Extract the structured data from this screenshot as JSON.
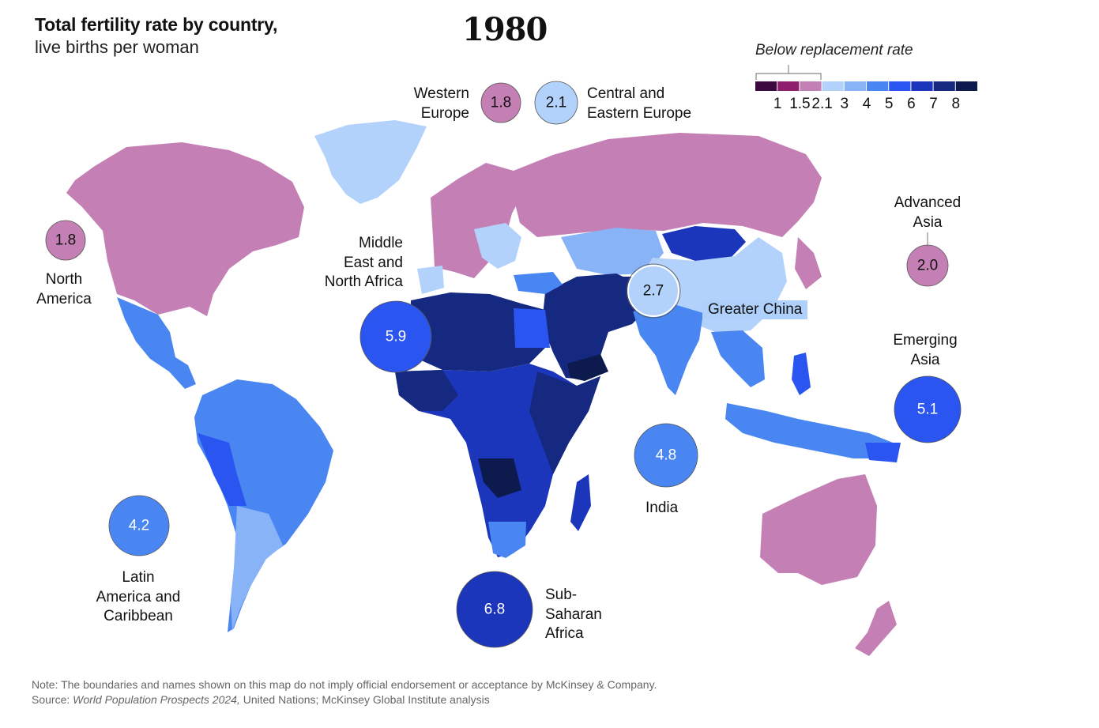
{
  "title": "Total fertility rate by country,",
  "subtitle": "live births per woman",
  "year": "1980",
  "legend": {
    "caption": "Below replacement rate",
    "ticks": [
      "1",
      "1.5",
      "2.1",
      "3",
      "4",
      "5",
      "6",
      "7",
      "8"
    ],
    "colors": [
      "#3d0a3f",
      "#8e1f6e",
      "#c47fb5",
      "#b3d2fb",
      "#88b3f7",
      "#4a86f2",
      "#2b55f0",
      "#1c36bb",
      "#14297f",
      "#0c1a4d"
    ]
  },
  "regions": [
    {
      "id": "north-america",
      "label": "North America",
      "value": "1.8",
      "color": "#c47fb5"
    },
    {
      "id": "western-europe",
      "label": "Western Europe",
      "value": "1.8",
      "color": "#c47fb5"
    },
    {
      "id": "central-eastern-europe",
      "label": "Central and Eastern Europe",
      "value": "2.1",
      "color": "#b3d2fb"
    },
    {
      "id": "middle-east-north-africa",
      "label": "Middle East and North Africa",
      "value": "5.9",
      "color": "#2b55f0"
    },
    {
      "id": "greater-china",
      "label": "Greater China",
      "value": "2.7",
      "color": "#b3d2fb"
    },
    {
      "id": "advanced-asia",
      "label": "Advanced Asia",
      "value": "2.0",
      "color": "#c47fb5"
    },
    {
      "id": "emerging-asia",
      "label": "Emerging Asia",
      "value": "5.1",
      "color": "#2b55f0"
    },
    {
      "id": "india",
      "label": "India",
      "value": "4.8",
      "color": "#4a86f2"
    },
    {
      "id": "latin-america",
      "label": "Latin America and Caribbean",
      "value": "4.2",
      "color": "#4a86f2"
    },
    {
      "id": "sub-saharan-africa",
      "label": "Sub-Saharan Africa",
      "value": "6.8",
      "color": "#1c36bb"
    }
  ],
  "note": "Note: The boundaries and names shown on this map do not imply official endorsement or acceptance by McKinsey & Company.",
  "source_prefix": "Source: ",
  "source_title": "World Population Prospects 2024,",
  "source_rest": " United Nations; McKinsey Global Institute analysis"
}
